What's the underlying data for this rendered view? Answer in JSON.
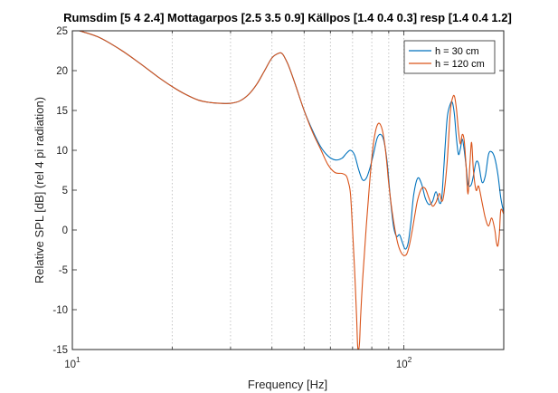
{
  "chart_data": {
    "type": "line",
    "title": "Rumsdim [5 4 2.4] Mottagarpos [2.5 3.5 0.9] Källpos [1.4 0.4 0.3] resp [1.4 0.4 1.2]",
    "xlabel": "Frequency [Hz]",
    "ylabel": "Relative SPL [dB] (rel 4 pi radiation)",
    "xscale": "log",
    "xlim": [
      10,
      200
    ],
    "ylim": [
      -15,
      25
    ],
    "y_ticks": [
      -15,
      -10,
      -5,
      0,
      5,
      10,
      15,
      20,
      25
    ],
    "x_major_ticks": [
      {
        "value": 10,
        "base": "10",
        "exp": "1"
      },
      {
        "value": 100,
        "base": "10",
        "exp": "2"
      }
    ],
    "x_minor_ticks": [
      20,
      30,
      40,
      50,
      60,
      70,
      80,
      90,
      200
    ],
    "grid": "x-minor-dotted",
    "legend": "top-right",
    "series": [
      {
        "name": "h = 30 cm",
        "color": "#0072BD",
        "x": [
          10.5,
          12,
          14,
          16,
          18,
          20,
          22,
          24,
          26,
          28,
          30,
          32,
          34,
          36,
          38,
          40,
          42,
          43,
          44,
          45,
          47,
          50,
          53,
          56,
          59,
          62,
          65,
          67,
          69,
          71,
          73,
          75,
          77,
          79,
          81,
          83,
          85,
          87,
          89,
          91,
          93,
          95,
          97,
          99,
          101,
          103,
          105,
          107,
          110,
          113,
          116,
          119,
          122,
          125,
          128,
          130,
          132,
          135,
          138,
          140,
          142,
          144,
          146,
          148,
          150,
          152,
          154,
          156,
          158,
          160,
          162,
          165,
          168,
          172,
          176,
          180,
          184,
          188,
          192,
          196,
          200
        ],
        "y": [
          25,
          24.2,
          22.6,
          20.9,
          19.3,
          18.0,
          17.0,
          16.3,
          16.0,
          15.9,
          15.9,
          16.2,
          17.0,
          18.3,
          20.0,
          21.6,
          22.2,
          22.1,
          21.4,
          20.5,
          18.3,
          15.0,
          12.5,
          10.5,
          9.3,
          8.8,
          9.0,
          9.6,
          10.0,
          9.4,
          7.6,
          6.3,
          6.5,
          7.8,
          9.6,
          11.5,
          12.0,
          11.2,
          8.5,
          4.0,
          0.5,
          -0.8,
          -0.6,
          -1.6,
          -2.4,
          -1.6,
          1.0,
          4.4,
          6.5,
          5.8,
          4.0,
          3.2,
          3.6,
          4.8,
          3.4,
          4.0,
          8.0,
          14.0,
          15.8,
          16.0,
          14.5,
          11.5,
          9.5,
          10.2,
          11.4,
          10.0,
          8.0,
          5.8,
          5.5,
          5.8,
          6.8,
          8.5,
          8.3,
          6.0,
          6.8,
          9.5,
          9.8,
          9.0,
          7.0,
          4.0,
          2.2
        ]
      },
      {
        "name": "h = 120 cm",
        "color": "#D95319",
        "x": [
          10.5,
          12,
          14,
          16,
          18,
          20,
          22,
          24,
          26,
          28,
          30,
          32,
          34,
          36,
          38,
          40,
          42,
          43,
          44,
          45,
          47,
          50,
          53,
          56,
          59,
          62,
          65,
          67,
          68,
          69,
          70,
          71,
          72,
          72.5,
          73,
          73.5,
          74,
          75,
          76,
          77,
          78,
          79,
          80,
          81,
          82,
          83,
          84,
          85,
          86,
          87,
          88,
          89,
          90,
          92,
          94,
          96,
          98,
          100,
          102,
          104,
          106,
          108,
          110,
          113,
          116,
          119,
          122,
          125,
          128,
          130,
          132,
          135,
          138,
          140,
          142,
          144,
          146,
          148,
          150,
          152,
          154,
          156,
          158,
          160,
          162,
          165,
          168,
          172,
          176,
          180,
          184,
          188,
          190,
          192,
          194,
          196,
          200
        ],
        "y": [
          25,
          24.2,
          22.6,
          20.9,
          19.3,
          18.0,
          17.0,
          16.3,
          16.0,
          15.9,
          15.9,
          16.2,
          17.0,
          18.3,
          20.0,
          21.6,
          22.2,
          22.1,
          21.4,
          20.5,
          18.3,
          15.0,
          12.3,
          10.2,
          8.2,
          7.2,
          7.1,
          6.8,
          6.0,
          4.5,
          0.0,
          -5.0,
          -11.0,
          -14.5,
          -15.0,
          -14.0,
          -11.0,
          -6.5,
          -3.0,
          0.5,
          3.5,
          6.5,
          9.0,
          11.0,
          12.3,
          13.1,
          13.4,
          13.2,
          12.6,
          11.5,
          10.0,
          8.0,
          5.8,
          2.5,
          0.0,
          -1.8,
          -2.8,
          -3.2,
          -3.0,
          -1.8,
          0.0,
          2.0,
          3.8,
          5.2,
          5.2,
          4.0,
          3.0,
          3.5,
          4.6,
          3.6,
          4.5,
          8.5,
          14.8,
          16.5,
          16.8,
          15.2,
          12.5,
          10.8,
          12.0,
          11.2,
          8.0,
          4.5,
          8.0,
          11.0,
          7.5,
          5.0,
          5.5,
          3.5,
          1.5,
          0.5,
          1.5,
          0.0,
          -1.5,
          -2.0,
          -0.5,
          2.5,
          2.0
        ]
      }
    ]
  }
}
